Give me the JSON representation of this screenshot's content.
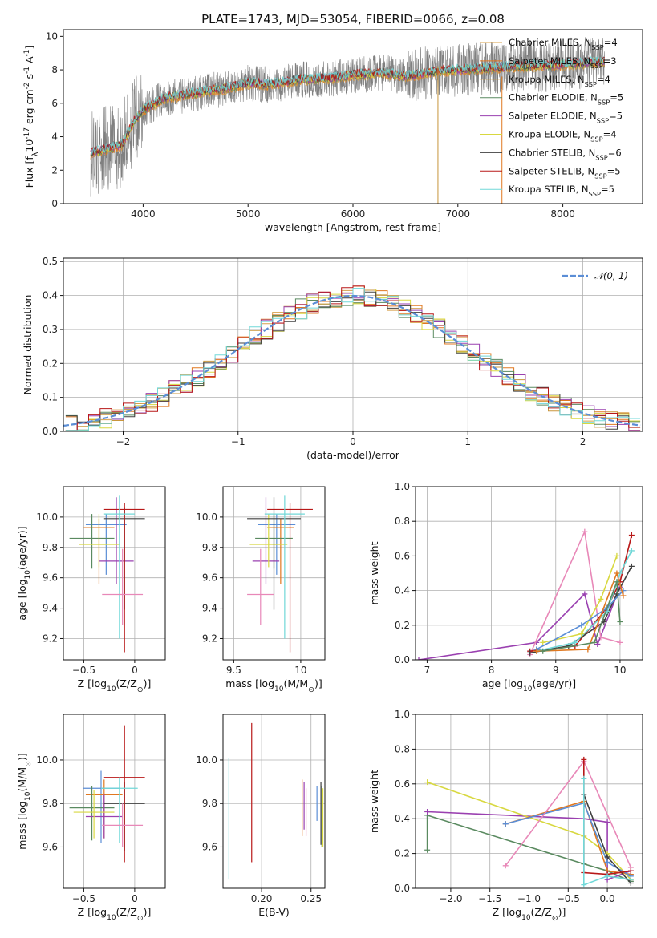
{
  "figure_title": "PLATE=1743, MJD=53054, FIBERID=0066, z=0.08",
  "colors": [
    "#d8a04a",
    "#e07820",
    "#c8963c",
    "#5a8a60",
    "#9a40b0",
    "#d8d840",
    "#404040",
    "#b81818",
    "#70d8d8"
  ],
  "legend_spectra": [
    {
      "label": "Chabrier MILES, N$_{SSP}$=4",
      "color": "#d8a04a"
    },
    {
      "label": "Salpeter MILES, N$_{SSP}$=3",
      "color": "#e07820"
    },
    {
      "label": "Kroupa MILES, N$_{SSP}$=4",
      "color": "#c8963c"
    },
    {
      "label": "Chabrier ELODIE, N$_{SSP}$=5",
      "color": "#5a8a60"
    },
    {
      "label": "Salpeter ELODIE, N$_{SSP}$=5",
      "color": "#9a40b0"
    },
    {
      "label": "Kroupa ELODIE, N$_{SSP}$=4",
      "color": "#d8d840"
    },
    {
      "label": "Chabrier STELIB, N$_{SSP}$=6",
      "color": "#404040"
    },
    {
      "label": "Salpeter STELIB, N$_{SSP}$=5",
      "color": "#b81818"
    },
    {
      "label": "Kroupa STELIB, N$_{SSP}$=5",
      "color": "#70d8d8"
    }
  ],
  "chart_data": [
    {
      "id": "spectrum",
      "type": "line",
      "xlabel": "wavelength [Angstrom, rest frame]",
      "ylabel": "Flux [f$_\\lambda$10$^{-17}$ erg cm$^{-2}$ s$^{-1}$ A$^{-1}$]",
      "xlim": [
        3240,
        8760
      ],
      "ylim": [
        0,
        10.4
      ],
      "xticks": [
        4000,
        5000,
        6000,
        7000,
        8000
      ],
      "yticks": [
        0,
        2,
        4,
        6,
        8,
        10
      ],
      "data_color": "#808080",
      "data_range": [
        3500,
        8400
      ],
      "model_color": "#70d8d8",
      "model_anchors": [
        [
          3500,
          3.0
        ],
        [
          3800,
          3.5
        ],
        [
          3900,
          4.8
        ],
        [
          4000,
          5.6
        ],
        [
          4200,
          6.3
        ],
        [
          4500,
          6.6
        ],
        [
          4800,
          6.9
        ],
        [
          5000,
          7.2
        ],
        [
          5200,
          7.1
        ],
        [
          5500,
          7.4
        ],
        [
          5800,
          7.5
        ],
        [
          6000,
          7.7
        ],
        [
          6300,
          7.8
        ],
        [
          6500,
          7.6
        ],
        [
          6800,
          7.9
        ],
        [
          7000,
          8.0
        ],
        [
          7300,
          8.1
        ],
        [
          7600,
          8.2
        ],
        [
          8000,
          8.3
        ],
        [
          8400,
          8.5
        ]
      ],
      "grid": false,
      "legend_position": "right"
    },
    {
      "id": "residuals",
      "type": "histogram",
      "xlabel": "(data-model)/error",
      "ylabel": "Normed distribution",
      "xlim": [
        -2.52,
        2.52
      ],
      "ylim": [
        0,
        0.51
      ],
      "xticks": [
        -2,
        -1,
        0,
        1,
        2
      ],
      "yticks": [
        0.0,
        0.1,
        0.2,
        0.3,
        0.4,
        0.5
      ],
      "bin_width": 0.1,
      "curve_label": "$\\mathcal{N}(0,1)$",
      "curve_color": "#5b8ed6",
      "grid": true,
      "legend_position": "top-right"
    },
    {
      "id": "age_vs_Z",
      "type": "errorbar",
      "xlabel": "Z [log$_{10}$(Z/Z$_\\odot$)]",
      "ylabel": "age  [log$_{10}$(age/yr)]",
      "xlim": [
        -0.7,
        0.3
      ],
      "ylim": [
        9.06,
        10.2
      ],
      "xticks": [
        -0.5,
        0.0
      ],
      "yticks": [
        9.2,
        9.4,
        9.6,
        9.8,
        10.0
      ],
      "points": [
        {
          "x": -0.28,
          "y": 9.95,
          "xerr": 0.2,
          "yerr": [
            0.33,
            0.07
          ],
          "color": "#5b8ed6"
        },
        {
          "x": -0.35,
          "y": 9.93,
          "xerr": 0.15,
          "yerr": [
            0.37,
            0.06
          ],
          "color": "#e07820"
        },
        {
          "x": -0.42,
          "y": 9.86,
          "xerr": 0.22,
          "yerr": [
            0.2,
            0.16
          ],
          "color": "#5a8a60"
        },
        {
          "x": -0.18,
          "y": 9.71,
          "xerr": 0.17,
          "yerr": [
            0.15,
            0.42
          ],
          "color": "#9a40b0"
        },
        {
          "x": -0.35,
          "y": 9.82,
          "xerr": 0.2,
          "yerr": [
            0.15,
            0.2
          ],
          "color": "#d8d840"
        },
        {
          "x": -0.1,
          "y": 9.99,
          "xerr": 0.2,
          "yerr": [
            0.6,
            0.07
          ],
          "color": "#404040"
        },
        {
          "x": -0.1,
          "y": 10.05,
          "xerr": 0.2,
          "yerr": [
            0.94,
            0.04
          ],
          "color": "#b81818"
        },
        {
          "x": -0.15,
          "y": 10.02,
          "xerr": 0.15,
          "yerr": [
            0.82,
            0.12
          ],
          "color": "#70d8d8"
        },
        {
          "x": -0.12,
          "y": 9.49,
          "xerr": 0.2,
          "yerr": [
            0.2,
            0.3
          ],
          "color": "#e888b8"
        }
      ]
    },
    {
      "id": "age_vs_mass",
      "type": "errorbar",
      "xlabel": "mass [log$_{10}$(M/M$_\\odot$)]",
      "ylabel": "",
      "xlim": [
        9.42,
        10.18
      ],
      "ylim": [
        9.06,
        10.2
      ],
      "xticks": [
        9.5,
        10.0
      ],
      "yticks": [
        9.2,
        9.4,
        9.6,
        9.8,
        10.0
      ],
      "points": [
        {
          "x": 9.82,
          "y": 9.95,
          "xerr": 0.14,
          "yerr": [
            0.33,
            0.07
          ],
          "color": "#5b8ed6"
        },
        {
          "x": 9.85,
          "y": 9.93,
          "xerr": 0.1,
          "yerr": [
            0.37,
            0.06
          ],
          "color": "#e07820"
        },
        {
          "x": 9.8,
          "y": 9.86,
          "xerr": 0.14,
          "yerr": [
            0.2,
            0.16
          ],
          "color": "#5a8a60"
        },
        {
          "x": 9.74,
          "y": 9.71,
          "xerr": 0.1,
          "yerr": [
            0.15,
            0.42
          ],
          "color": "#9a40b0"
        },
        {
          "x": 9.76,
          "y": 9.82,
          "xerr": 0.14,
          "yerr": [
            0.15,
            0.2
          ],
          "color": "#d8d840"
        },
        {
          "x": 9.8,
          "y": 9.99,
          "xerr": 0.2,
          "yerr": [
            0.6,
            0.14
          ],
          "color": "#404040"
        },
        {
          "x": 9.92,
          "y": 10.05,
          "xerr": 0.17,
          "yerr": [
            0.94,
            0.04
          ],
          "color": "#b81818"
        },
        {
          "x": 9.88,
          "y": 10.02,
          "xerr": 0.15,
          "yerr": [
            0.82,
            0.12
          ],
          "color": "#70d8d8"
        },
        {
          "x": 9.7,
          "y": 9.49,
          "xerr": 0.1,
          "yerr": [
            0.2,
            0.3
          ],
          "color": "#e888b8"
        }
      ]
    },
    {
      "id": "weight_vs_age",
      "type": "line",
      "xlabel": "age  [log$_{10}$(age/yr)]",
      "ylabel": "mass weight",
      "xlim": [
        6.82,
        10.35
      ],
      "ylim": [
        0,
        1
      ],
      "xticks": [
        7,
        8,
        9,
        10
      ],
      "yticks": [
        0.0,
        0.2,
        0.4,
        0.6,
        0.8,
        1.0
      ],
      "grid": true,
      "series": [
        {
          "color": "#9a40b0",
          "points": [
            [
              6.87,
              0.0
            ],
            [
              8.7,
              0.1
            ],
            [
              9.45,
              0.38
            ],
            [
              9.65,
              0.09
            ],
            [
              10.0,
              0.42
            ]
          ]
        },
        {
          "color": "#e888b8",
          "points": [
            [
              8.6,
              0.03
            ],
            [
              9.45,
              0.74
            ],
            [
              9.7,
              0.13
            ],
            [
              10.0,
              0.1
            ]
          ]
        },
        {
          "color": "#b81818",
          "points": [
            [
              8.6,
              0.05
            ],
            [
              9.3,
              0.08
            ],
            [
              9.8,
              0.3
            ],
            [
              10.0,
              0.45
            ],
            [
              10.18,
              0.72
            ]
          ]
        },
        {
          "color": "#404040",
          "points": [
            [
              8.6,
              0.04
            ],
            [
              9.2,
              0.08
            ],
            [
              9.75,
              0.22
            ],
            [
              9.95,
              0.38
            ],
            [
              10.18,
              0.54
            ]
          ]
        },
        {
          "color": "#70d8d8",
          "points": [
            [
              8.7,
              0.05
            ],
            [
              9.3,
              0.1
            ],
            [
              9.8,
              0.28
            ],
            [
              10.0,
              0.5
            ],
            [
              10.18,
              0.63
            ]
          ]
        },
        {
          "color": "#d8d840",
          "points": [
            [
              8.8,
              0.1
            ],
            [
              9.4,
              0.15
            ],
            [
              9.7,
              0.35
            ],
            [
              9.95,
              0.6
            ]
          ]
        },
        {
          "color": "#5b8ed6",
          "points": [
            [
              8.7,
              0.06
            ],
            [
              9.4,
              0.2
            ],
            [
              9.8,
              0.3
            ],
            [
              10.05,
              0.4
            ]
          ]
        },
        {
          "color": "#e07820",
          "points": [
            [
              8.7,
              0.05
            ],
            [
              9.5,
              0.06
            ],
            [
              9.95,
              0.5
            ],
            [
              10.05,
              0.37
            ]
          ]
        },
        {
          "color": "#5a8a60",
          "points": [
            [
              8.8,
              0.05
            ],
            [
              9.6,
              0.1
            ],
            [
              9.95,
              0.45
            ],
            [
              10.0,
              0.22
            ]
          ]
        }
      ]
    },
    {
      "id": "mass_vs_Z",
      "type": "errorbar",
      "xlabel": "Z [log$_{10}$(Z/Z$_\\odot$)]",
      "ylabel": "mass [log$_{10}$(M/M$_\\odot$)]",
      "xlim": [
        -0.7,
        0.3
      ],
      "ylim": [
        9.41,
        10.21
      ],
      "xticks": [
        -0.5,
        0.0
      ],
      "yticks": [
        9.6,
        9.8,
        10.0
      ],
      "points": [
        {
          "x": -0.33,
          "y": 9.87,
          "xerr": 0.18,
          "yerr": [
            0.25,
            0.08
          ],
          "color": "#5b8ed6"
        },
        {
          "x": -0.3,
          "y": 9.84,
          "xerr": 0.18,
          "yerr": [
            0.2,
            0.07
          ],
          "color": "#e07820"
        },
        {
          "x": -0.42,
          "y": 9.78,
          "xerr": 0.22,
          "yerr": [
            0.15,
            0.1
          ],
          "color": "#5a8a60"
        },
        {
          "x": -0.3,
          "y": 9.74,
          "xerr": 0.18,
          "yerr": [
            0.1,
            0.1
          ],
          "color": "#9a40b0"
        },
        {
          "x": -0.4,
          "y": 9.76,
          "xerr": 0.2,
          "yerr": [
            0.12,
            0.1
          ],
          "color": "#d8d840"
        },
        {
          "x": -0.1,
          "y": 9.8,
          "xerr": 0.2,
          "yerr": [
            0.22,
            0.1
          ],
          "color": "#404040"
        },
        {
          "x": -0.1,
          "y": 9.92,
          "xerr": 0.2,
          "yerr": [
            0.39,
            0.24
          ],
          "color": "#b81818"
        },
        {
          "x": -0.15,
          "y": 9.87,
          "xerr": 0.18,
          "yerr": [
            0.25,
            0.05
          ],
          "color": "#70d8d8"
        },
        {
          "x": -0.12,
          "y": 9.7,
          "xerr": 0.2,
          "yerr": [
            0.1,
            0.1
          ],
          "color": "#e888b8"
        }
      ]
    },
    {
      "id": "mass_vs_EBV",
      "type": "errorbar",
      "xlabel": "E(B-V)",
      "ylabel": "",
      "xlim": [
        0.161,
        0.264
      ],
      "ylim": [
        9.41,
        10.21
      ],
      "xticks": [
        0.2,
        0.25
      ],
      "tick_labels": [
        "0.20",
        "0.25"
      ],
      "yticks": [
        9.6,
        9.8,
        10.0
      ],
      "points": [
        {
          "x": 0.256,
          "y": 9.82,
          "yerr": [
            0.1,
            0.06
          ],
          "color": "#5b8ed6"
        },
        {
          "x": 0.241,
          "y": 9.8,
          "yerr": [
            0.15,
            0.11
          ],
          "color": "#e07820"
        },
        {
          "x": 0.261,
          "y": 9.78,
          "yerr": [
            0.18,
            0.1
          ],
          "color": "#5a8a60"
        },
        {
          "x": 0.243,
          "y": 9.8,
          "yerr": [
            0.12,
            0.1
          ],
          "color": "#9a40b0"
        },
        {
          "x": 0.262,
          "y": 9.76,
          "yerr": [
            0.16,
            0.11
          ],
          "color": "#d8d840"
        },
        {
          "x": 0.26,
          "y": 9.8,
          "yerr": [
            0.19,
            0.1
          ],
          "color": "#404040"
        },
        {
          "x": 0.19,
          "y": 9.85,
          "yerr": [
            0.32,
            0.32
          ],
          "color": "#b81818"
        },
        {
          "x": 0.167,
          "y": 9.73,
          "yerr": [
            0.28,
            0.28
          ],
          "color": "#70d8d8"
        },
        {
          "x": 0.245,
          "y": 9.77,
          "yerr": [
            0.12,
            0.1
          ],
          "color": "#e888b8"
        }
      ]
    },
    {
      "id": "weight_vs_Z",
      "type": "line",
      "xlabel": "Z [log$_{10}$(Z/Z$_\\odot$)]",
      "ylabel": "mass weight",
      "xlim": [
        -2.45,
        0.45
      ],
      "ylim": [
        0,
        1
      ],
      "xticks": [
        -2.0,
        -1.5,
        -1.0,
        -0.5,
        0.0
      ],
      "tick_labels": [
        "−2.0",
        "−1.5",
        "−1.0",
        "−0.5",
        "0.0"
      ],
      "yticks": [
        0.0,
        0.2,
        0.4,
        0.6,
        0.8,
        1.0
      ],
      "grid": true,
      "series": [
        {
          "color": "#5a8a60",
          "points": [
            [
              -2.3,
              0.22
            ],
            [
              -2.3,
              0.42
            ],
            [
              -0.3,
              0.14
            ],
            [
              0.0,
              0.1
            ],
            [
              0.3,
              0.04
            ]
          ]
        },
        {
          "color": "#9a40b0",
          "points": [
            [
              -2.3,
              0.44
            ],
            [
              -0.3,
              0.4
            ],
            [
              0.0,
              0.38
            ],
            [
              0.0,
              0.05
            ],
            [
              0.3,
              0.1
            ]
          ]
        },
        {
          "color": "#d8d840",
          "points": [
            [
              -2.3,
              0.61
            ],
            [
              -0.3,
              0.3
            ],
            [
              0.0,
              0.2
            ],
            [
              0.3,
              0.05
            ]
          ]
        },
        {
          "color": "#e07820",
          "points": [
            [
              -1.3,
              0.37
            ],
            [
              -0.3,
              0.5
            ],
            [
              0.0,
              0.1
            ],
            [
              0.3,
              0.08
            ]
          ]
        },
        {
          "color": "#5b8ed6",
          "points": [
            [
              -1.3,
              0.37
            ],
            [
              -0.3,
              0.49
            ],
            [
              0.0,
              0.15
            ],
            [
              0.3,
              0.07
            ]
          ]
        },
        {
          "color": "#e888b8",
          "points": [
            [
              -1.3,
              0.13
            ],
            [
              -0.3,
              0.73
            ],
            [
              0.3,
              0.12
            ]
          ]
        },
        {
          "color": "#404040",
          "points": [
            [
              -0.3,
              0.54
            ],
            [
              0.0,
              0.18
            ],
            [
              0.3,
              0.03
            ]
          ]
        },
        {
          "color": "#b81818",
          "points": [
            [
              -0.3,
              0.74
            ],
            [
              -0.3,
              0.09
            ],
            [
              0.0,
              0.08
            ],
            [
              0.3,
              0.1
            ]
          ]
        },
        {
          "color": "#70d8d8",
          "points": [
            [
              -0.3,
              0.63
            ],
            [
              -0.3,
              0.02
            ],
            [
              0.0,
              0.07
            ],
            [
              0.3,
              0.05
            ]
          ]
        }
      ]
    }
  ]
}
